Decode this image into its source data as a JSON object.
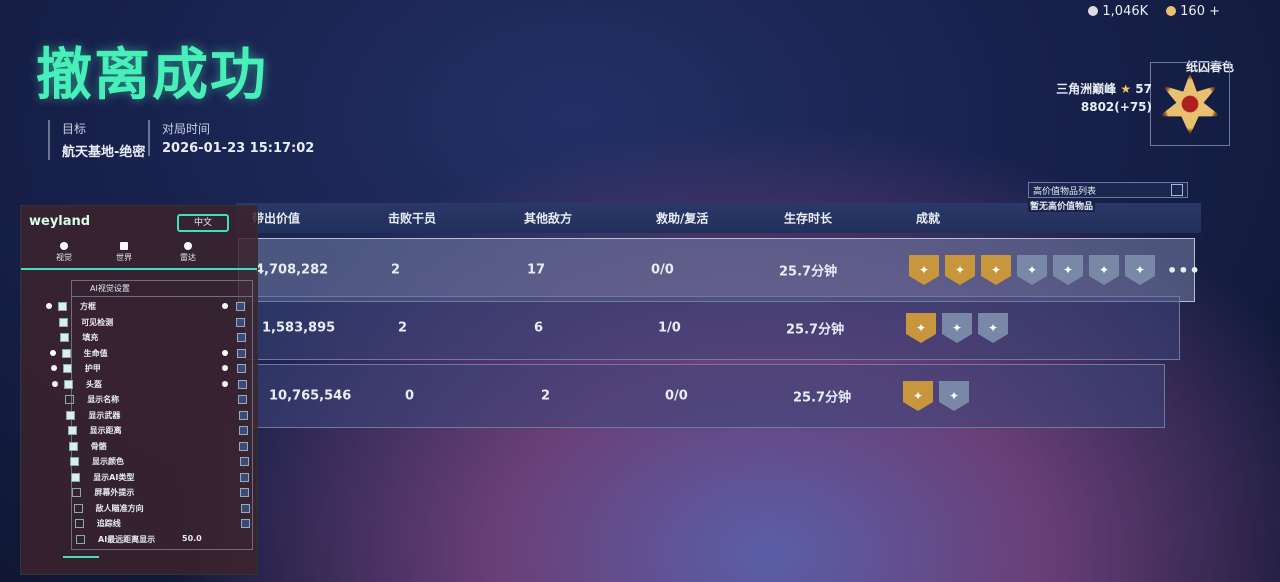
{
  "header": {
    "title": "撤离成功",
    "target_label": "目标",
    "target_value": "航天基地-绝密",
    "time_label": "对局时间",
    "time_value": "2026-01-23 15:17:02"
  },
  "currency": {
    "silver": "1,046K",
    "gold": "160 +"
  },
  "player": {
    "rank_title": "纸囚春色",
    "tier": "三角洲巅峰",
    "stars": "57",
    "score": "8802(+75)",
    "star_icon": "star-icon"
  },
  "high_value": {
    "title": "高价值物品列表",
    "empty": "暂无高价值物品"
  },
  "table": {
    "columns": [
      "带出价值",
      "击败干员",
      "其他敌方",
      "救助/复活",
      "生存时长",
      "成就"
    ],
    "rows": [
      {
        "value": "4,708,282",
        "kills": "2",
        "others": "17",
        "assist": "0/0",
        "time": "25.7分钟",
        "badges": [
          "gold",
          "gold",
          "gold",
          "silver",
          "silver",
          "silver",
          "silver"
        ],
        "more": "•••"
      },
      {
        "value": "1,583,895",
        "kills": "2",
        "others": "6",
        "assist": "1/0",
        "time": "25.7分钟",
        "badges": [
          "gold",
          "silver",
          "silver"
        ]
      },
      {
        "value": "10,765,546",
        "kills": "0",
        "others": "2",
        "assist": "0/0",
        "time": "25.7分钟",
        "badges": [
          "gold",
          "silver"
        ]
      }
    ]
  },
  "overlay": {
    "brand": "weyland",
    "lang": "中文",
    "tabs": [
      "视觉",
      "世界",
      "雷达"
    ],
    "section": "AI视觉设置",
    "items": [
      "方框",
      "可见检测",
      "填充",
      "生命值",
      "护甲",
      "头盔",
      "显示名称",
      "显示武器",
      "显示距离",
      "骨骼",
      "显示颜色",
      "显示AI类型",
      "屏幕外提示",
      "敌人瞄准方向",
      "追踪线",
      "AI最远距离显示"
    ],
    "distance_value": "50.0"
  },
  "colors": {
    "accent": "#46f0b8",
    "gold_badge": "#c8963c",
    "silver_badge": "#7a88a8"
  }
}
